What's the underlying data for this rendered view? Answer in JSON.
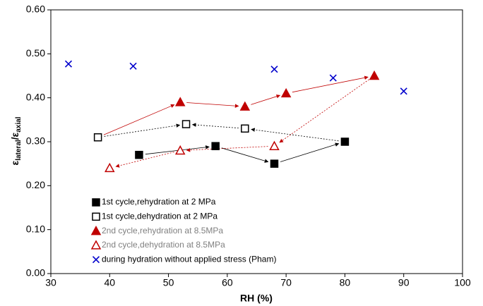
{
  "chart_data": {
    "type": "scatter",
    "xlabel": "RH (%)",
    "ylabel": [
      "ε",
      "lateral",
      "/ε",
      "axial"
    ],
    "xlim": [
      30,
      100
    ],
    "xticks": [
      30,
      40,
      50,
      60,
      70,
      80,
      90,
      100
    ],
    "ylim": [
      0,
      0.6
    ],
    "yticks": [
      {
        "value": 0,
        "label": "0.00"
      },
      {
        "value": 0.1,
        "label": "0.10"
      },
      {
        "value": 0.2,
        "label": "0.20"
      },
      {
        "value": 0.3,
        "label": "0.30"
      },
      {
        "value": 0.4,
        "label": "0.40"
      },
      {
        "value": 0.5,
        "label": "0.50"
      },
      {
        "value": 0.6,
        "label": "0.60"
      }
    ],
    "legend": "lower left",
    "series": [
      {
        "name": "1st cycle,rehydration at 2 MPa",
        "color": "#000000",
        "marker": "square-filled",
        "x": [
          45,
          58,
          68,
          80
        ],
        "values": [
          0.27,
          0.29,
          0.25,
          0.3
        ]
      },
      {
        "name": "1st cycle,dehydration at 2 MPa",
        "color": "#000000",
        "marker": "square-open",
        "x": [
          38,
          53,
          63
        ],
        "values": [
          0.31,
          0.34,
          0.33
        ]
      },
      {
        "name": "2nd cycle,rehydration at 8.5MPa",
        "color": "#c00000",
        "marker": "triangle-filled",
        "x": [
          52,
          63,
          70,
          85
        ],
        "values": [
          0.39,
          0.38,
          0.41,
          0.45
        ]
      },
      {
        "name": "2nd cycle,dehydration at 8.5MPa",
        "color": "#c00000",
        "marker": "triangle-open",
        "x": [
          40,
          52,
          68
        ],
        "values": [
          0.24,
          0.28,
          0.29
        ]
      },
      {
        "name": "during hydration without applied stress (Pham)",
        "color": "#0000cc",
        "marker": "x",
        "x": [
          33,
          44,
          68,
          78,
          90
        ],
        "values": [
          0.477,
          0.472,
          0.465,
          0.445,
          0.415
        ]
      }
    ]
  }
}
